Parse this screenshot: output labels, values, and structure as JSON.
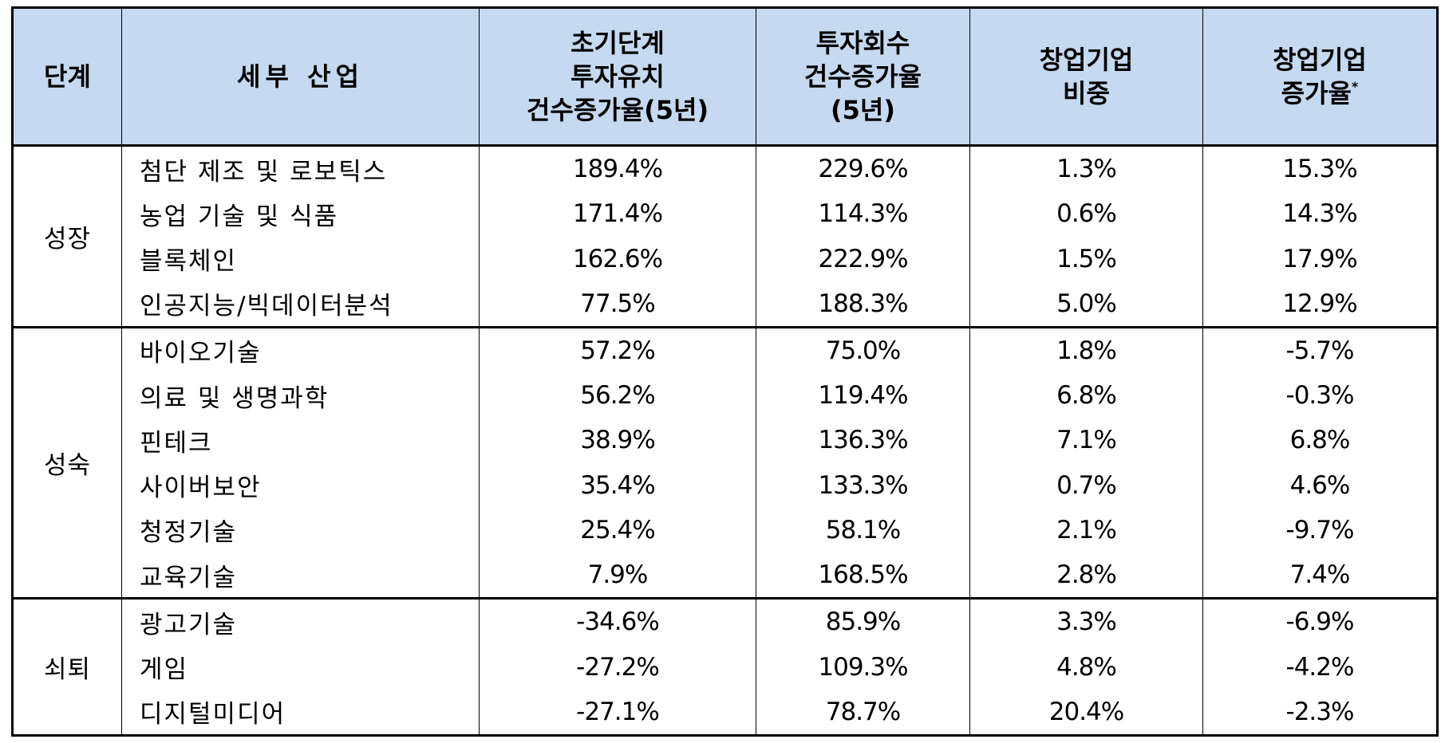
{
  "header": {
    "stage": "단계",
    "industry": "세부 산업",
    "early_investment": [
      "초기단계",
      "투자유치",
      "건수증가율(5년)"
    ],
    "exit": [
      "투자회수",
      "건수증가율",
      "(5년)"
    ],
    "startup_share": [
      "창업기업",
      "비중"
    ],
    "startup_growth": [
      "창업기업",
      "증가율"
    ],
    "startup_growth_mark": "*"
  },
  "groups": [
    {
      "stage": "성장",
      "rows": [
        {
          "industry": "첨단 제조 및 로보틱스",
          "early": "189.4%",
          "exit": "229.6%",
          "share": "1.3%",
          "growth": "15.3%"
        },
        {
          "industry": "농업 기술 및 식품",
          "early": "171.4%",
          "exit": "114.3%",
          "share": "0.6%",
          "growth": "14.3%"
        },
        {
          "industry": "블록체인",
          "early": "162.6%",
          "exit": "222.9%",
          "share": "1.5%",
          "growth": "17.9%"
        },
        {
          "industry": "인공지능/빅데이터분석",
          "early": "77.5%",
          "exit": "188.3%",
          "share": "5.0%",
          "growth": "12.9%"
        }
      ]
    },
    {
      "stage": "성숙",
      "rows": [
        {
          "industry": "바이오기술",
          "early": "57.2%",
          "exit": "75.0%",
          "share": "1.8%",
          "growth": "-5.7%"
        },
        {
          "industry": "의료 및 생명과학",
          "early": "56.2%",
          "exit": "119.4%",
          "share": "6.8%",
          "growth": "-0.3%"
        },
        {
          "industry": "핀테크",
          "early": "38.9%",
          "exit": "136.3%",
          "share": "7.1%",
          "growth": "6.8%"
        },
        {
          "industry": "사이버보안",
          "early": "35.4%",
          "exit": "133.3%",
          "share": "0.7%",
          "growth": "4.6%"
        },
        {
          "industry": "청정기술",
          "early": "25.4%",
          "exit": "58.1%",
          "share": "2.1%",
          "growth": "-9.7%"
        },
        {
          "industry": "교육기술",
          "early": "7.9%",
          "exit": "168.5%",
          "share": "2.8%",
          "growth": "7.4%"
        }
      ]
    },
    {
      "stage": "쇠퇴",
      "rows": [
        {
          "industry": "광고기술",
          "early": "-34.6%",
          "exit": "85.9%",
          "share": "3.3%",
          "growth": "-6.9%"
        },
        {
          "industry": "게임",
          "early": "-27.2%",
          "exit": "109.3%",
          "share": "4.8%",
          "growth": "-4.2%"
        },
        {
          "industry": "디지털미디어",
          "early": "-27.1%",
          "exit": "78.7%",
          "share": "20.4%",
          "growth": "-2.3%"
        }
      ]
    }
  ]
}
